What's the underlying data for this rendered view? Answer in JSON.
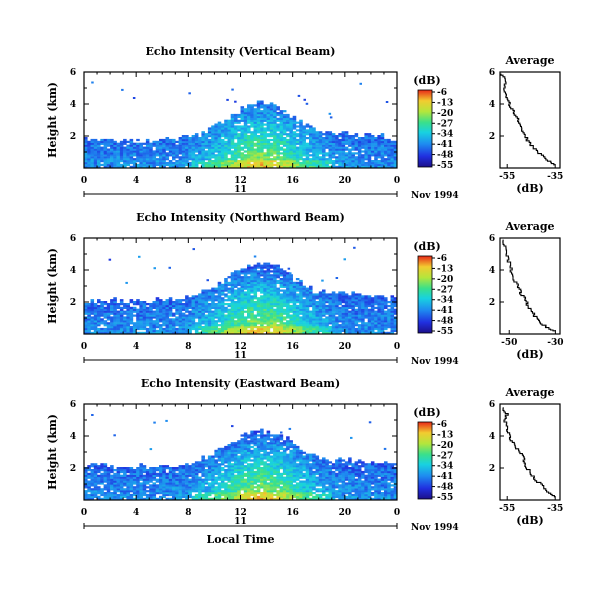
{
  "chart_data": [
    {
      "type": "heatmap",
      "title": "Echo Intensity (Vertical Beam)",
      "ylabel": "Height (km)",
      "xticks": [
        "0",
        "4",
        "8",
        "12",
        "16",
        "20",
        "0"
      ],
      "yticks": [
        "2",
        "4",
        "6"
      ],
      "xlim": [
        0,
        24
      ],
      "ylim": [
        0,
        6
      ],
      "date_label": "11",
      "date_suffix": "Nov 1994",
      "colorbar": {
        "unit": "(dB)",
        "ticks": [
          "-6",
          "-13",
          "-20",
          "-27",
          "-34",
          "-41",
          "-48",
          "-55"
        ],
        "range": [
          -55,
          -6
        ]
      },
      "profile": {
        "title": "Average",
        "xlabel": "(dB)",
        "xticks": [
          "-55",
          "-35"
        ],
        "xlim": [
          -58,
          -33
        ],
        "yticks": [
          "2",
          "4",
          "6"
        ],
        "ylim": [
          0,
          6
        ],
        "points": [
          [
            -35,
            0.2
          ],
          [
            -38,
            0.5
          ],
          [
            -41,
            0.9
          ],
          [
            -44,
            1.3
          ],
          [
            -46,
            1.7
          ],
          [
            -48,
            2.1
          ],
          [
            -49,
            2.5
          ],
          [
            -50,
            2.9
          ],
          [
            -51,
            3.3
          ],
          [
            -53,
            3.7
          ],
          [
            -54,
            4.1
          ],
          [
            -55,
            4.5
          ],
          [
            -56,
            5.0
          ],
          [
            -56,
            5.5
          ],
          [
            -57,
            5.9
          ]
        ]
      }
    },
    {
      "type": "heatmap",
      "title": "Echo Intensity (Northward Beam)",
      "ylabel": "Height (km)",
      "xticks": [
        "0",
        "4",
        "8",
        "12",
        "16",
        "20",
        "0"
      ],
      "yticks": [
        "2",
        "4",
        "6"
      ],
      "xlim": [
        0,
        24
      ],
      "ylim": [
        0,
        6
      ],
      "date_label": "11",
      "date_suffix": "Nov 1994",
      "colorbar": {
        "unit": "(dB)",
        "ticks": [
          "-6",
          "-13",
          "-20",
          "-27",
          "-34",
          "-41",
          "-48",
          "-55"
        ],
        "range": [
          -55,
          -6
        ]
      },
      "profile": {
        "title": "Average",
        "xlabel": "(dB)",
        "xticks": [
          "-50",
          "-30"
        ],
        "xlim": [
          -54,
          -28
        ],
        "yticks": [
          "2",
          "4",
          "6"
        ],
        "ylim": [
          0,
          6
        ],
        "points": [
          [
            -30,
            0.2
          ],
          [
            -33,
            0.4
          ],
          [
            -36,
            0.7
          ],
          [
            -38,
            1.0
          ],
          [
            -40,
            1.4
          ],
          [
            -42,
            1.8
          ],
          [
            -43,
            2.2
          ],
          [
            -45,
            2.6
          ],
          [
            -46,
            3.0
          ],
          [
            -48,
            3.5
          ],
          [
            -49,
            4.0
          ],
          [
            -50,
            4.5
          ],
          [
            -51,
            5.0
          ],
          [
            -52,
            5.5
          ],
          [
            -53,
            5.9
          ]
        ]
      }
    },
    {
      "type": "heatmap",
      "title": "Echo Intensity (Eastward Beam)",
      "ylabel": "Height (km)",
      "xlabel": "Local Time",
      "xticks": [
        "0",
        "4",
        "8",
        "12",
        "16",
        "20",
        "0"
      ],
      "yticks": [
        "2",
        "4",
        "6"
      ],
      "xlim": [
        0,
        24
      ],
      "ylim": [
        0,
        6
      ],
      "date_label": "11",
      "date_suffix": "Nov 1994",
      "colorbar": {
        "unit": "(dB)",
        "ticks": [
          "-6",
          "-13",
          "-20",
          "-27",
          "-34",
          "-41",
          "-48",
          "-55"
        ],
        "range": [
          -55,
          -6
        ]
      },
      "profile": {
        "title": "Average",
        "xlabel": "(dB)",
        "xticks": [
          "-55",
          "-35"
        ],
        "xlim": [
          -58,
          -33
        ],
        "yticks": [
          "2",
          "4",
          "6"
        ],
        "ylim": [
          0,
          6
        ],
        "points": [
          [
            -35,
            0.2
          ],
          [
            -38,
            0.5
          ],
          [
            -40,
            0.9
          ],
          [
            -43,
            1.3
          ],
          [
            -45,
            1.7
          ],
          [
            -47,
            2.1
          ],
          [
            -48,
            2.5
          ],
          [
            -49,
            2.9
          ],
          [
            -51,
            3.3
          ],
          [
            -53,
            3.7
          ],
          [
            -54,
            4.1
          ],
          [
            -55,
            4.5
          ],
          [
            -56,
            5.0
          ],
          [
            -55,
            5.4
          ],
          [
            -57,
            5.8
          ]
        ]
      }
    }
  ]
}
